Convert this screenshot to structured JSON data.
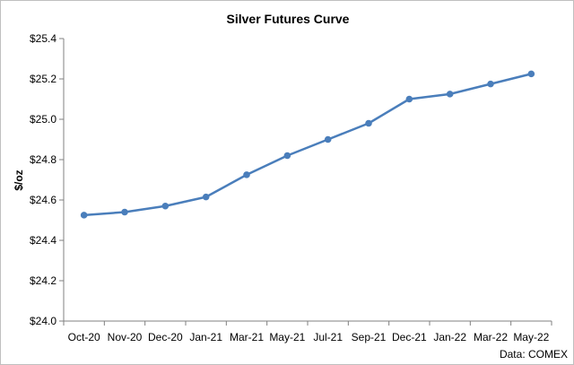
{
  "chart_data": {
    "type": "line",
    "title": "Silver Futures Curve",
    "xlabel": "",
    "ylabel": "$/oz",
    "source_note": "Data: COMEX",
    "categories": [
      "Oct-20",
      "Nov-20",
      "Dec-20",
      "Jan-21",
      "Mar-21",
      "May-21",
      "Jul-21",
      "Sep-21",
      "Dec-21",
      "Jan-22",
      "Mar-22",
      "May-22"
    ],
    "series": [
      {
        "values": [
          24.525,
          24.54,
          24.57,
          24.615,
          24.725,
          24.82,
          24.9,
          24.98,
          25.1,
          25.125,
          25.175,
          25.225
        ],
        "color": "#4a7ebb"
      }
    ],
    "ylim": [
      24.0,
      25.4
    ],
    "yticks": [
      "$24.0",
      "$24.2",
      "$24.4",
      "$24.6",
      "$24.8",
      "$25.0",
      "$25.2",
      "$25.4"
    ],
    "ytick_values": [
      24.0,
      24.2,
      24.4,
      24.6,
      24.8,
      25.0,
      25.2,
      25.4
    ],
    "grid": false,
    "legend": "none",
    "axis_color": "#808080"
  }
}
